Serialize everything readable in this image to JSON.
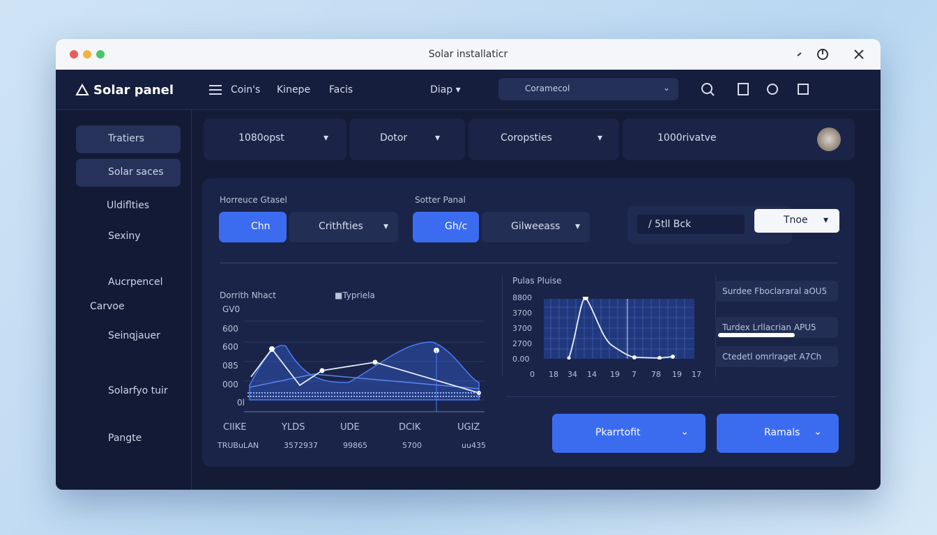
{
  "window": {
    "title": "Solar installaticr"
  },
  "header": {
    "brand": "Solar panel",
    "nav": [
      "Coin's",
      "Kinepe",
      "Facis"
    ],
    "dropdown": "Diap",
    "search": "Coramecol"
  },
  "sidebar": {
    "items": [
      "Tratiers",
      "Solar saces",
      "Uldiflties",
      "Sexiny",
      "Aucrpencel",
      "Carvoe",
      "Seinqjauer",
      "Solarfyo tuir",
      "Pangte"
    ]
  },
  "filters": [
    "1080opst",
    "Dotor",
    "Coropsties",
    "1000rivatve"
  ],
  "controls": {
    "group1": {
      "label": "Horreuce Gtasel",
      "primary": "Chn",
      "select": "Crithfties"
    },
    "group2": {
      "label": "Sotter Panal",
      "primary": "Gh/c",
      "select": "Gilweeass"
    },
    "input": "/ 5tll Bck",
    "toggle": "Tnoe"
  },
  "chart1": {
    "title": "Dorrith Nhact",
    "legend": "Typriela",
    "yticks": [
      "GV0",
      "600",
      "600",
      "085",
      "000",
      "0l"
    ],
    "xlabels": [
      "CIIKE",
      "YLDS",
      "UDE",
      "DCIK",
      "UGIZ"
    ],
    "sublabels": [
      "TRUBuLAN",
      "3572937",
      "99865",
      "5700",
      "uu435"
    ]
  },
  "chart2": {
    "title": "Pulas Pluise",
    "yticks": [
      "8800",
      "3700",
      "3700",
      "2700",
      "0.00"
    ],
    "xticks": [
      "0",
      "18",
      "34",
      "14",
      "19",
      "7",
      "78",
      "19",
      "17"
    ]
  },
  "list": [
    "Surdee Fboclararal aOU5",
    "Turdex Lrllacrian APU5",
    "Ctedetl omrlraget A7Ch"
  ],
  "actions": [
    "Pkarrtofit",
    "Ramals"
  ]
}
